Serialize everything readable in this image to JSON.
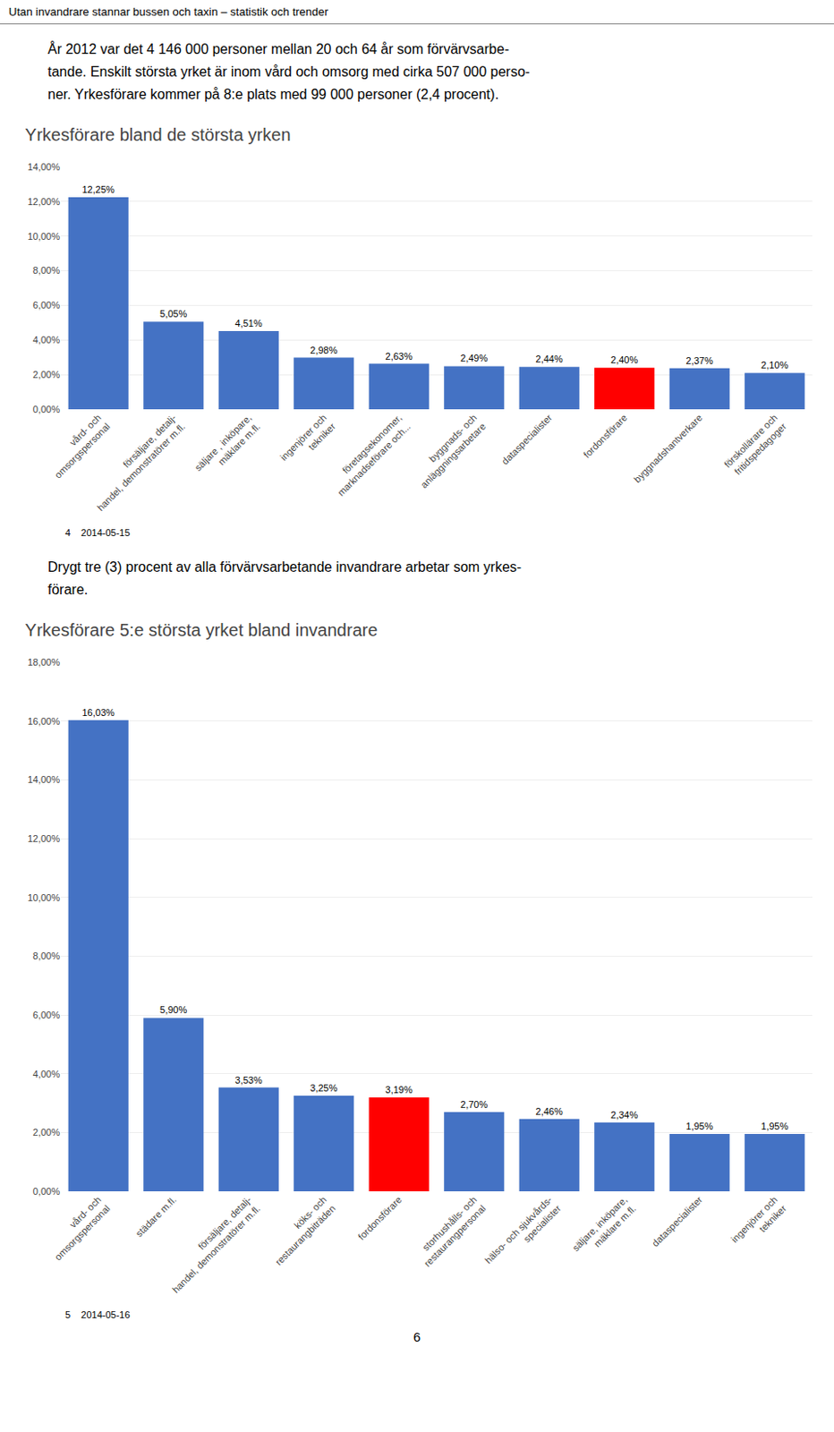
{
  "chart_data": [
    {
      "type": "bar",
      "title": "Yrkesförare bland de största yrken",
      "annotations": [
        "Utan invandrare stannar bussen och taxin – statistik och trender",
        "År 2012 var det 4 146 000 personer mellan 20 och 64 år som förvärvsarbe-",
        "tande. Enskilt största yrket är inom vård och omsorg med cirka 507 000 perso-",
        "ner. Yrkesförare kommer på 8:e plats med 99 000 personer (2,4 procent).",
        "4    2014-05-15"
      ],
      "categories": [
        "vård- och\nomsorgspersonal",
        "försäljare, detalj-\nhandel, demonstratörer m.fl.",
        "säljare , inköpare,\nmäklare m.fl.",
        "ingenjörer och\ntekniker",
        "företagsekonomer,\nmarknadseförare och...",
        "byggnads- och\nanläggningsarbetare",
        "dataspecialister",
        "fordonsförare",
        "byggnadshantverkare",
        "förskollärare och\nfritidspedagoger"
      ],
      "values": [
        12.25,
        5.05,
        4.51,
        2.98,
        2.63,
        2.49,
        2.44,
        2.4,
        2.37,
        2.1
      ],
      "value_labels": [
        "12,25%",
        "5,05%",
        "4,51%",
        "2,98%",
        "2,63%",
        "2,49%",
        "2,44%",
        "2,40%",
        "2,37%",
        "2,10%"
      ],
      "data_labels": true,
      "colors": [
        "#4472C4",
        "#4472C4",
        "#4472C4",
        "#4472C4",
        "#4472C4",
        "#4472C4",
        "#4472C4",
        "#FF0000",
        "#4472C4",
        "#4472C4"
      ],
      "ylim": [
        0,
        14
      ],
      "yticks": [
        {
          "value": 0,
          "label": "0,00%"
        },
        {
          "value": 2,
          "label": "2,00%"
        },
        {
          "value": 4,
          "label": "4,00%"
        },
        {
          "value": 6,
          "label": "6,00%"
        },
        {
          "value": 8,
          "label": "8,00%"
        },
        {
          "value": 10,
          "label": "10,00%"
        },
        {
          "value": 12,
          "label": "12,00%"
        },
        {
          "value": 14,
          "label": "14,00%"
        }
      ],
      "grid": true
    },
    {
      "type": "bar",
      "title": "Yrkesförare 5:e största yrket bland invandrare",
      "annotations": [
        "Drygt tre (3) procent av alla förvärvsarbetande invandrare arbetar som yrkes-",
        "förare.",
        "5    2014-05-16",
        "6"
      ],
      "categories": [
        "vård- och\nomsorgspersonal",
        "städare m.fl.",
        "försäljare, detalj-\nhandel, demonstratörer m.fl.",
        "köks- och\nrestaurangbiträden",
        "fordonsförare",
        "storhushålls- och\nrestaurangpersonal",
        "hälso- och sjukvårds-\nspecialister",
        "säljare, inköpare,\nmäklare m.fl.",
        "dataspecialister",
        "ingenjörer och\ntekniker"
      ],
      "values": [
        16.03,
        5.9,
        3.53,
        3.25,
        3.19,
        2.7,
        2.46,
        2.34,
        1.95,
        1.95
      ],
      "value_labels": [
        "16,03%",
        "5,90%",
        "3,53%",
        "3,25%",
        "3,19%",
        "2,70%",
        "2,46%",
        "2,34%",
        "1,95%",
        "1,95%"
      ],
      "data_labels": true,
      "colors": [
        "#4472C4",
        "#4472C4",
        "#4472C4",
        "#4472C4",
        "#FF0000",
        "#4472C4",
        "#4472C4",
        "#4472C4",
        "#4472C4",
        "#4472C4"
      ],
      "ylim": [
        0,
        18
      ],
      "yticks": [
        {
          "value": 0,
          "label": "0,00%"
        },
        {
          "value": 2,
          "label": "2,00%"
        },
        {
          "value": 4,
          "label": "4,00%"
        },
        {
          "value": 6,
          "label": "6,00%"
        },
        {
          "value": 8,
          "label": "8,00%"
        },
        {
          "value": 10,
          "label": "10,00%"
        },
        {
          "value": 12,
          "label": "12,00%"
        },
        {
          "value": 14,
          "label": "14,00%"
        },
        {
          "value": 16,
          "label": "16,00%"
        },
        {
          "value": 18,
          "label": "18,00%"
        }
      ],
      "grid": true
    }
  ]
}
